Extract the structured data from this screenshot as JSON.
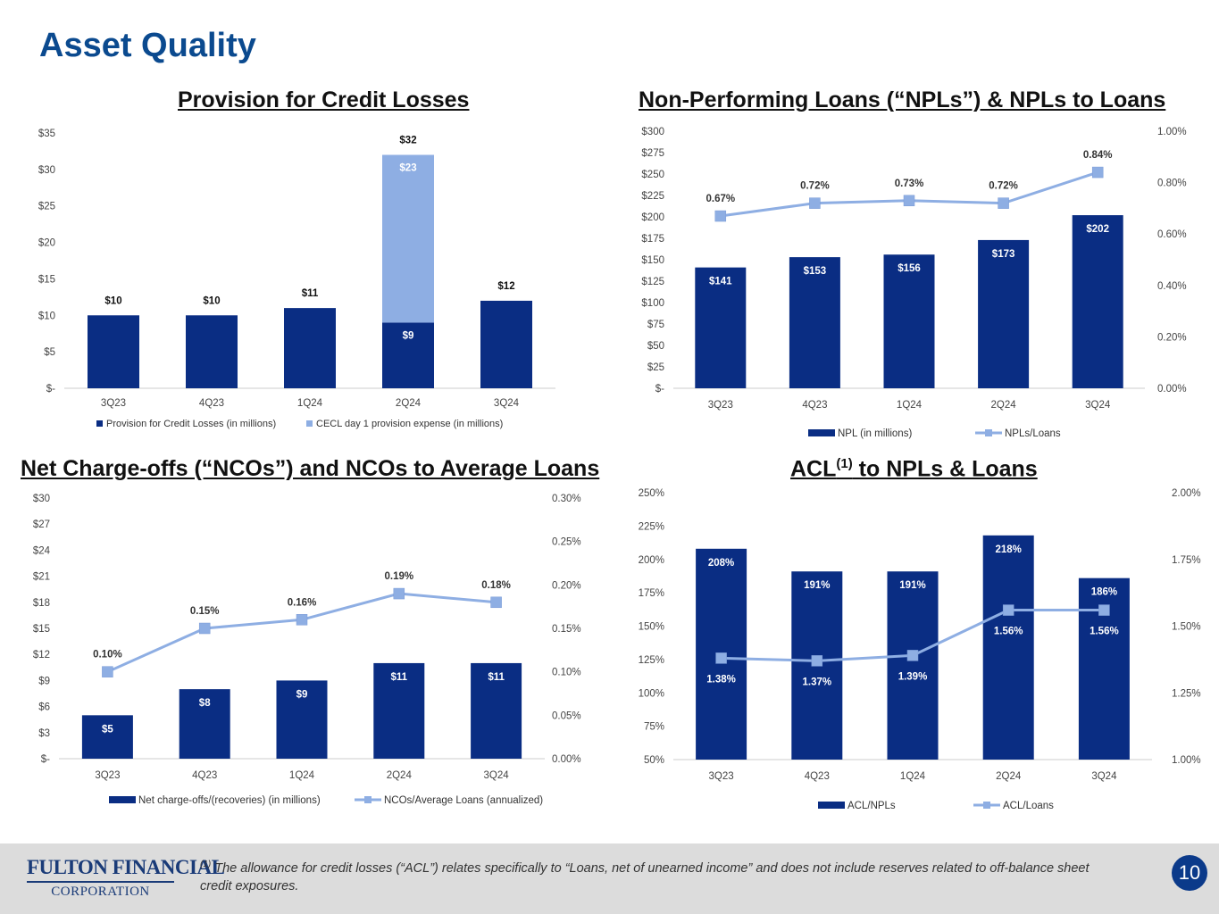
{
  "page": {
    "title": "Asset Quality",
    "page_number": "10"
  },
  "footer": {
    "logo_line1": "FULTON FINANCIAL",
    "logo_line2": "CORPORATION",
    "footnote_marker": "(1)",
    "footnote": " The allowance for credit losses (“ACL”) relates specifically to “Loans, net of unearned income” and does not include reserves related to off-balance sheet credit exposures."
  },
  "colors": {
    "dark_blue": "#0a2d83",
    "light_blue": "#8eaee3",
    "title_blue": "#0b4a8f"
  },
  "chart_data": [
    {
      "id": "provision",
      "type": "bar",
      "title": "Provision for Credit Losses",
      "categories": [
        "3Q23",
        "4Q23",
        "1Q24",
        "2Q24",
        "3Q24"
      ],
      "stacked": true,
      "series": [
        {
          "name": "Provision for Credit Losses (in millions)",
          "values": [
            10,
            10,
            11,
            9,
            12
          ],
          "color": "#0a2d83",
          "labels": [
            "",
            "",
            "",
            "$9",
            ""
          ]
        },
        {
          "name": "CECL day 1 provision expense (in millions)",
          "values": [
            0,
            0,
            0,
            23,
            0
          ],
          "color": "#8eaee3",
          "labels": [
            "",
            "",
            "",
            "$23",
            ""
          ]
        }
      ],
      "total_labels": [
        "$10",
        "$10",
        "$11",
        "$32",
        "$12"
      ],
      "y_axis": {
        "range": [
          0,
          35
        ],
        "ticks": [
          0,
          5,
          10,
          15,
          20,
          25,
          30,
          35
        ],
        "tick_labels": [
          "$-",
          "$5",
          "$10",
          "$15",
          "$20",
          "$25",
          "$30",
          "$35"
        ]
      },
      "legend": "bottom"
    },
    {
      "id": "npl",
      "type": "bar+line",
      "title": "Non-Performing Loans (“NPLs”) & NPLs to Loans",
      "categories": [
        "3Q23",
        "4Q23",
        "1Q24",
        "2Q24",
        "3Q24"
      ],
      "bars": {
        "name": "NPL (in millions)",
        "values": [
          141,
          153,
          156,
          173,
          202
        ],
        "labels": [
          "$141",
          "$153",
          "$156",
          "$173",
          "$202"
        ]
      },
      "line": {
        "name": "NPLs/Loans",
        "values": [
          0.67,
          0.72,
          0.73,
          0.72,
          0.84
        ],
        "labels": [
          "0.67%",
          "0.72%",
          "0.73%",
          "0.72%",
          "0.84%"
        ]
      },
      "y_axis_left": {
        "range": [
          0,
          300
        ],
        "ticks": [
          0,
          25,
          50,
          75,
          100,
          125,
          150,
          175,
          200,
          225,
          250,
          275,
          300
        ],
        "tick_labels": [
          "$-",
          "$25",
          "$50",
          "$75",
          "$100",
          "$125",
          "$150",
          "$175",
          "$200",
          "$225",
          "$250",
          "$275",
          "$300"
        ]
      },
      "y_axis_right": {
        "range": [
          0,
          1
        ],
        "ticks": [
          0,
          0.2,
          0.4,
          0.6,
          0.8,
          1.0
        ],
        "tick_labels": [
          "0.00%",
          "0.20%",
          "0.40%",
          "0.60%",
          "0.80%",
          "1.00%"
        ]
      },
      "legend": "bottom"
    },
    {
      "id": "nco",
      "type": "bar+line",
      "title": "Net Charge-offs (“NCOs”) and NCOs to Average Loans",
      "categories": [
        "3Q23",
        "4Q23",
        "1Q24",
        "2Q24",
        "3Q24"
      ],
      "bars": {
        "name": "Net charge-offs/(recoveries) (in millions)",
        "values": [
          5,
          8,
          9,
          11,
          11
        ],
        "labels": [
          "$5",
          "$8",
          "$9",
          "$11",
          "$11"
        ]
      },
      "line": {
        "name": "NCOs/Average Loans (annualized)",
        "values": [
          0.1,
          0.15,
          0.16,
          0.19,
          0.18
        ],
        "labels": [
          "0.10%",
          "0.15%",
          "0.16%",
          "0.19%",
          "0.18%"
        ]
      },
      "y_axis_left": {
        "range": [
          0,
          30
        ],
        "ticks": [
          0,
          3,
          6,
          9,
          12,
          15,
          18,
          21,
          24,
          27,
          30
        ],
        "tick_labels": [
          "$-",
          "$3",
          "$6",
          "$9",
          "$12",
          "$15",
          "$18",
          "$21",
          "$24",
          "$27",
          "$30"
        ]
      },
      "y_axis_right": {
        "range": [
          0,
          0.3
        ],
        "ticks": [
          0,
          0.05,
          0.1,
          0.15,
          0.2,
          0.25,
          0.3
        ],
        "tick_labels": [
          "0.00%",
          "0.05%",
          "0.10%",
          "0.15%",
          "0.20%",
          "0.25%",
          "0.30%"
        ]
      },
      "legend": "bottom"
    },
    {
      "id": "acl",
      "type": "bar+line",
      "title": "ACL",
      "title_sup": "(1)",
      "title_suffix": " to NPLs & Loans",
      "categories": [
        "3Q23",
        "4Q23",
        "1Q24",
        "2Q24",
        "3Q24"
      ],
      "bars": {
        "name": "ACL/NPLs",
        "values": [
          208,
          191,
          191,
          218,
          186
        ],
        "labels": [
          "208%",
          "191%",
          "191%",
          "218%",
          "186%"
        ]
      },
      "line": {
        "name": "ACL/Loans",
        "values": [
          1.38,
          1.37,
          1.39,
          1.56,
          1.56
        ],
        "labels": [
          "1.38%",
          "1.37%",
          "1.39%",
          "1.56%",
          "1.56%"
        ]
      },
      "y_axis_left": {
        "range": [
          50,
          250
        ],
        "ticks": [
          50,
          75,
          100,
          125,
          150,
          175,
          200,
          225,
          250
        ],
        "tick_labels": [
          "50%",
          "75%",
          "100%",
          "125%",
          "150%",
          "175%",
          "200%",
          "225%",
          "250%"
        ]
      },
      "y_axis_right": {
        "range": [
          1.0,
          2.0
        ],
        "ticks": [
          1.0,
          1.25,
          1.5,
          1.75,
          2.0
        ],
        "tick_labels": [
          "1.00%",
          "1.25%",
          "1.50%",
          "1.75%",
          "2.00%"
        ]
      },
      "legend": "bottom"
    }
  ]
}
